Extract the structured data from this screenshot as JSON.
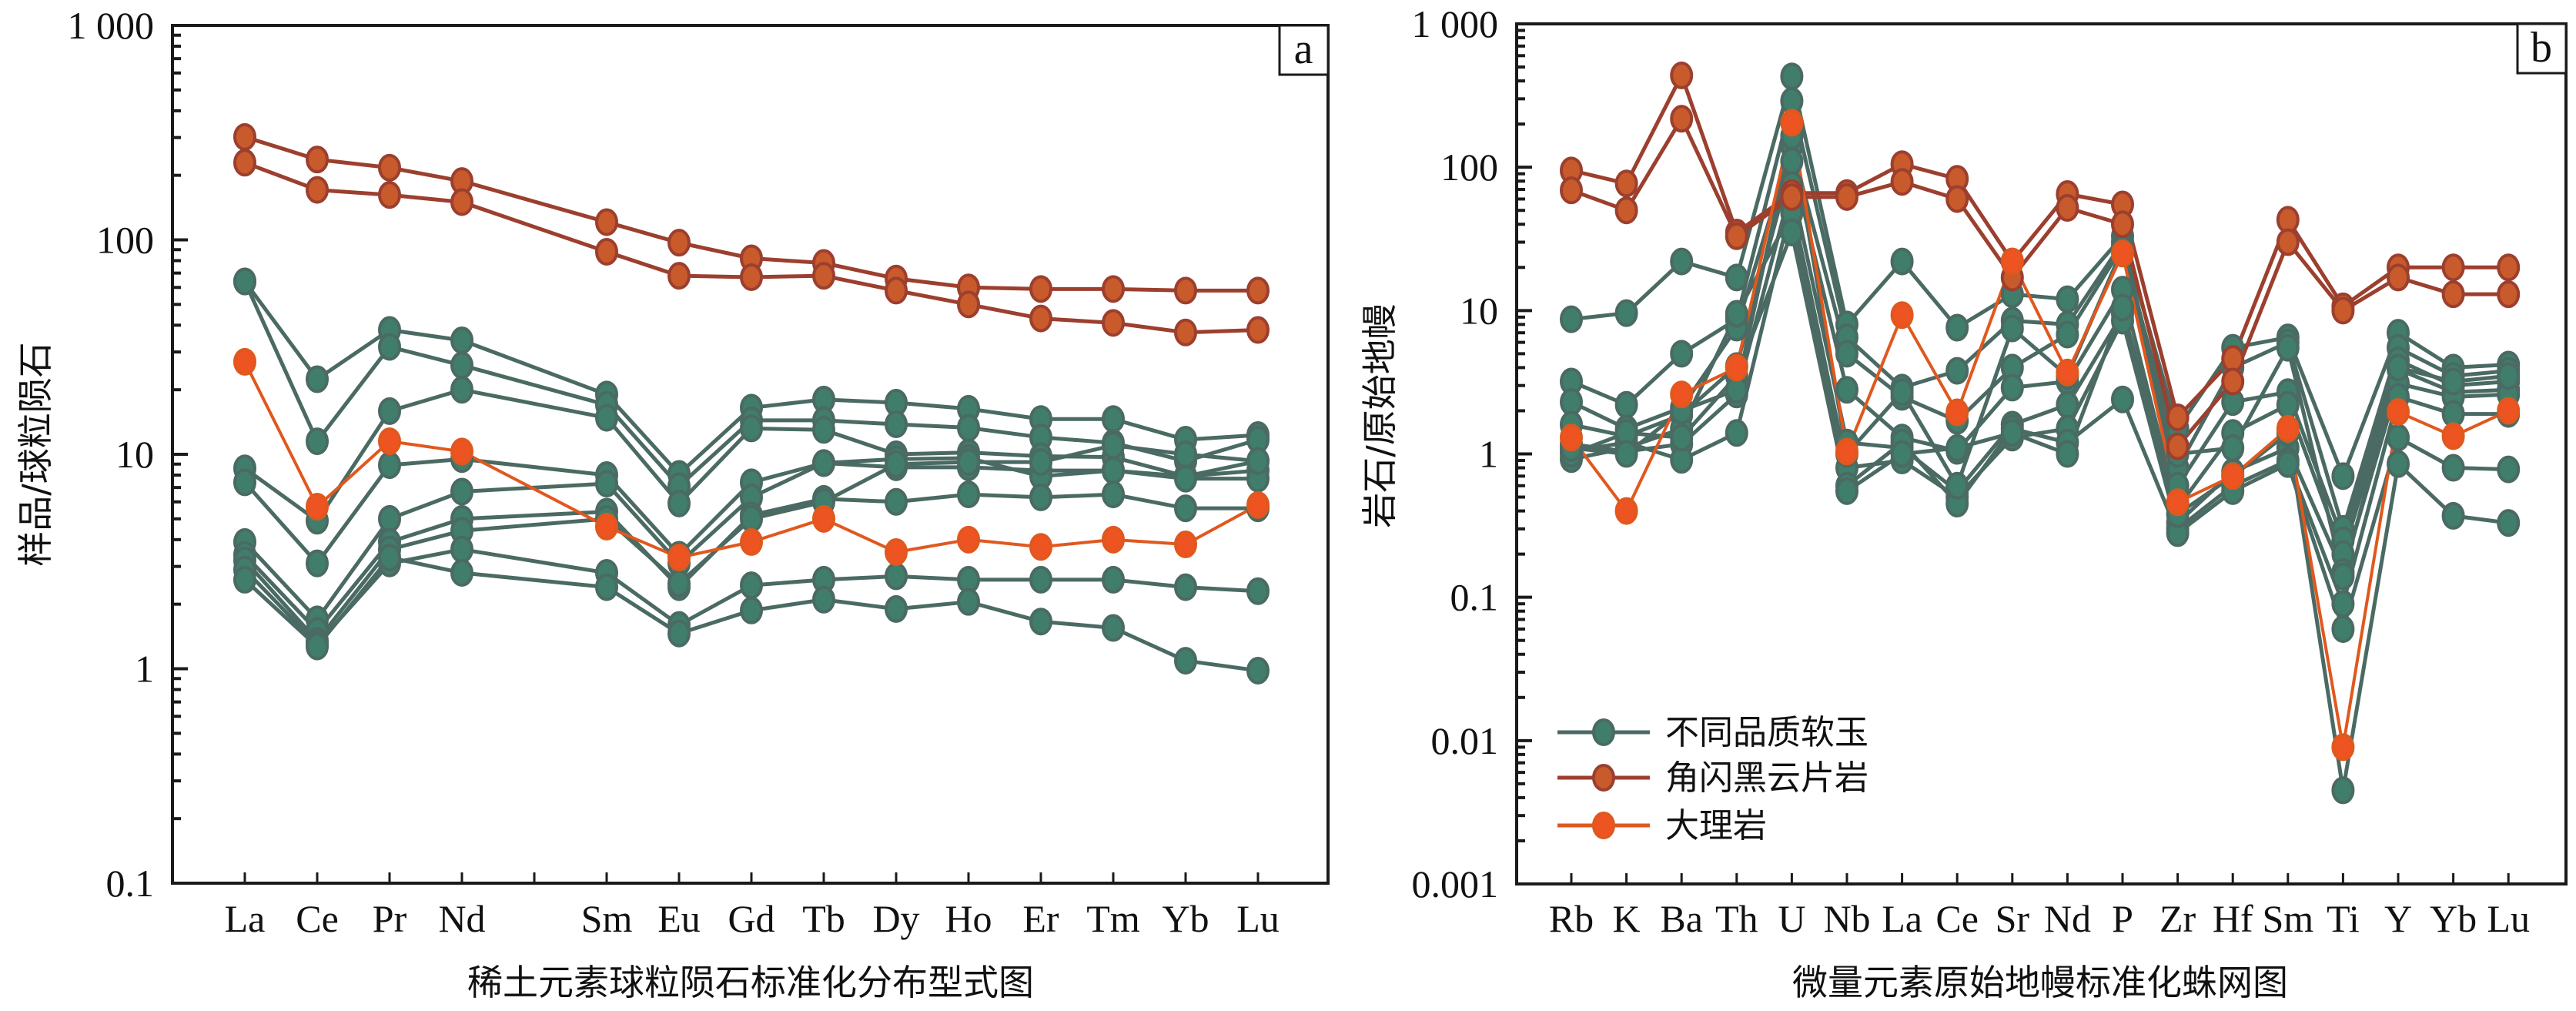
{
  "colors": {
    "jade_fill": "#417D6B",
    "jade_line": "#4A6A63",
    "schist_fill": "#C85A2C",
    "schist_line": "#9C3F2E",
    "marble_fill": "#EE5322",
    "marble_line": "#E0581E"
  },
  "legend": [
    {
      "key": "jade",
      "label": "不同品质软玉"
    },
    {
      "key": "schist",
      "label": "角闪黑云片岩"
    },
    {
      "key": "marble",
      "label": "大理岩"
    }
  ],
  "chart_data": [
    {
      "id": "a",
      "panel_label": "a",
      "type": "line",
      "title": "",
      "xlabel": "稀土元素球粒陨石标准化分布型式图",
      "ylabel": "样品/球粒陨石",
      "yscale": "log",
      "ylim": [
        0.1,
        1000
      ],
      "ytick_labels": [
        "0.1",
        "1",
        "10",
        "100",
        "1 000"
      ],
      "ytick_values": [
        0.1,
        1,
        10,
        100,
        1000
      ],
      "categories": [
        "La",
        "Ce",
        "Pr",
        "Nd",
        "",
        "Sm",
        "Eu",
        "Gd",
        "Tb",
        "Dy",
        "Ho",
        "Er",
        "Tm",
        "Yb",
        "Lu"
      ],
      "series": [
        {
          "group": "schist",
          "name": "角闪黑云片岩-1",
          "values": [
            302,
            237,
            217,
            188,
            null,
            121,
            97,
            82,
            78,
            66,
            60,
            59,
            59,
            58,
            58
          ]
        },
        {
          "group": "schist",
          "name": "角闪黑云片岩-2",
          "values": [
            229,
            171,
            162,
            150,
            null,
            88,
            68,
            67,
            68,
            58,
            50,
            43,
            41,
            37,
            38
          ]
        },
        {
          "group": "jade",
          "name": "软玉-1",
          "values": [
            64,
            22.4,
            38,
            34,
            null,
            19,
            8.1,
            16.5,
            18,
            17.4,
            16.3,
            14.6,
            14.6,
            11.7,
            12.3
          ]
        },
        {
          "group": "jade",
          "name": "软玉-2",
          "values": [
            64,
            11.5,
            31.7,
            26,
            null,
            17,
            7.1,
            14.4,
            14.4,
            13.8,
            13.3,
            12,
            11.3,
            9.3,
            11.7
          ]
        },
        {
          "group": "jade",
          "name": "软玉-3",
          "values": [
            8.6,
            4.9,
            15.9,
            20,
            null,
            14.8,
            5.9,
            13.2,
            13,
            10,
            10.2,
            9.8,
            9.7,
            7.9,
            9.3
          ]
        },
        {
          "group": "jade",
          "name": "软玉-4",
          "values": [
            7.4,
            3.1,
            8.9,
            9.5,
            null,
            8.0,
            3.4,
            7.4,
            9.1,
            8.7,
            8.7,
            8.4,
            8.4,
            7.9,
            8.4
          ]
        },
        {
          "group": "jade",
          "name": "软玉-5",
          "values": [
            3.9,
            1.7,
            5.0,
            6.7,
            null,
            7.3,
            3.1,
            6.3,
            9.1,
            9.5,
            9.6,
            7.9,
            8.4,
            7.7,
            7.7
          ]
        },
        {
          "group": "jade",
          "name": "软玉-6",
          "values": [
            3.4,
            1.5,
            3.9,
            5.0,
            null,
            5.4,
            2.4,
            5.2,
            6.2,
            6.0,
            6.5,
            6.3,
            6.5,
            5.6,
            5.6
          ]
        },
        {
          "group": "jade",
          "name": "软玉-7",
          "values": [
            3.2,
            1.35,
            3.6,
            4.4,
            null,
            5.0,
            2.5,
            5.0,
            6.0,
            9.0,
            9.2,
            9.2,
            11,
            10,
            9.3
          ]
        },
        {
          "group": "jade",
          "name": "软玉-8",
          "values": [
            2.9,
            1.3,
            3.1,
            3.6,
            null,
            2.8,
            1.6,
            2.45,
            2.6,
            2.7,
            2.6,
            2.6,
            2.6,
            2.4,
            2.3
          ]
        },
        {
          "group": "jade",
          "name": "软玉-9",
          "values": [
            2.6,
            1.27,
            3.3,
            2.8,
            null,
            2.4,
            1.46,
            1.87,
            2.1,
            1.9,
            2.05,
            1.66,
            1.55,
            1.09,
            0.98
          ]
        },
        {
          "group": "marble",
          "name": "大理岩",
          "values": [
            27,
            5.7,
            11.5,
            10.3,
            null,
            4.6,
            3.3,
            3.9,
            5.0,
            3.5,
            4.0,
            3.7,
            4.0,
            3.8,
            5.8
          ]
        }
      ]
    },
    {
      "id": "b",
      "panel_label": "b",
      "type": "line",
      "title": "",
      "xlabel": "微量元素原始地幔标准化蛛网图",
      "ylabel": "岩石/原始地幔",
      "yscale": "log",
      "ylim": [
        0.001,
        1000
      ],
      "ytick_labels": [
        "0.001",
        "0.01",
        "0.1",
        "1",
        "10",
        "100",
        "1 000"
      ],
      "ytick_values": [
        0.001,
        0.01,
        0.1,
        1,
        10,
        100,
        1000
      ],
      "categories": [
        "Rb",
        "K",
        "Ba",
        "Th",
        "U",
        "Nb",
        "La",
        "Ce",
        "Sr",
        "Nd",
        "P",
        "Zr",
        "Hf",
        "Sm",
        "Ti",
        "Y",
        "Yb",
        "Lu"
      ],
      "legend_position": "bottom-left",
      "series": [
        {
          "group": "schist",
          "name": "角闪黑云片岩-1",
          "values": [
            95,
            77,
            437,
            35,
            66,
            66,
            105,
            83,
            22,
            65,
            55,
            1.8,
            4.6,
            43,
            10.7,
            20,
            20,
            20
          ]
        },
        {
          "group": "schist",
          "name": "角闪黑云片岩-2",
          "values": [
            69,
            50,
            218,
            33,
            62,
            62,
            79,
            60,
            17,
            52,
            40,
            1.13,
            3.2,
            30,
            10,
            17,
            13,
            13
          ]
        },
        {
          "group": "jade",
          "name": "软玉-1",
          "values": [
            8.7,
            9.6,
            22,
            17,
            430,
            8.0,
            22,
            7.6,
            13,
            12,
            33,
            1.5,
            5.5,
            6.5,
            0.7,
            7.0,
            4.0,
            4.2
          ]
        },
        {
          "group": "jade",
          "name": "软玉-2",
          "values": [
            3.2,
            2.2,
            5.0,
            8.7,
            290,
            6.5,
            2.9,
            3.8,
            8.5,
            8.0,
            30,
            0.8,
            4.0,
            6.0,
            0.3,
            5.5,
            3.5,
            3.8
          ]
        },
        {
          "group": "jade",
          "name": "软玉-3",
          "values": [
            2.3,
            1.5,
            2.1,
            7.6,
            140,
            5.0,
            2.5,
            1.7,
            4.0,
            6.8,
            28,
            0.6,
            2.3,
            2.7,
            0.25,
            4.5,
            3.0,
            3.2
          ]
        },
        {
          "group": "jade",
          "name": "软玉-4",
          "values": [
            1.6,
            1.33,
            1.87,
            4.1,
            110,
            2.8,
            1.3,
            1.05,
            2.9,
            3.2,
            14,
            0.42,
            1.4,
            2.2,
            0.2,
            3.9,
            2.7,
            2.8
          ]
        },
        {
          "group": "jade",
          "name": "软玉-5",
          "values": [
            1.17,
            1.04,
            1.17,
            2.6,
            75,
            1.2,
            1.1,
            0.55,
            1.6,
            2.2,
            9.5,
            0.33,
            0.75,
            1.1,
            0.15,
            3.1,
            2.5,
            2.6
          ]
        },
        {
          "group": "jade",
          "name": "软玉-6",
          "values": [
            1.04,
            1.2,
            0.91,
            1.4,
            55,
            0.8,
            0.9,
            0.5,
            1.3,
            1.5,
            8.5,
            0.3,
            0.6,
            0.9,
            0.09,
            2.5,
            1.9,
            1.9
          ]
        },
        {
          "group": "jade",
          "name": "软玉-7",
          "values": [
            0.92,
            1.1,
            1.5,
            9.5,
            48,
            0.6,
            1.2,
            0.45,
            1.5,
            1.2,
            2.4,
            0.28,
            0.55,
            0.85,
            0.06,
            1.3,
            0.8,
            0.78
          ]
        },
        {
          "group": "jade",
          "name": "软玉-8",
          "values": [
            1.0,
            1.4,
            1.3,
            3.5,
            35,
            0.55,
            1.0,
            1.1,
            1.4,
            1.0,
            10.5,
            0.38,
            0.7,
            1.4,
            0.0045,
            0.85,
            0.37,
            0.33
          ]
        },
        {
          "group": "jade",
          "name": "软玉-9",
          "values": [
            1.1,
            1.0,
            2.0,
            2.8,
            165,
            1.0,
            2.7,
            0.6,
            7.5,
            3.5,
            27,
            1.0,
            1.1,
            5.5,
            0.14,
            4.0,
            3.2,
            3.5
          ]
        },
        {
          "group": "marble",
          "name": "大理岩",
          "values": [
            1.3,
            0.4,
            2.6,
            4.0,
            204,
            1.04,
            9.3,
            1.95,
            22,
            3.7,
            25,
            0.46,
            0.7,
            1.5,
            0.009,
            1.96,
            1.33,
            2.0
          ]
        }
      ]
    }
  ]
}
